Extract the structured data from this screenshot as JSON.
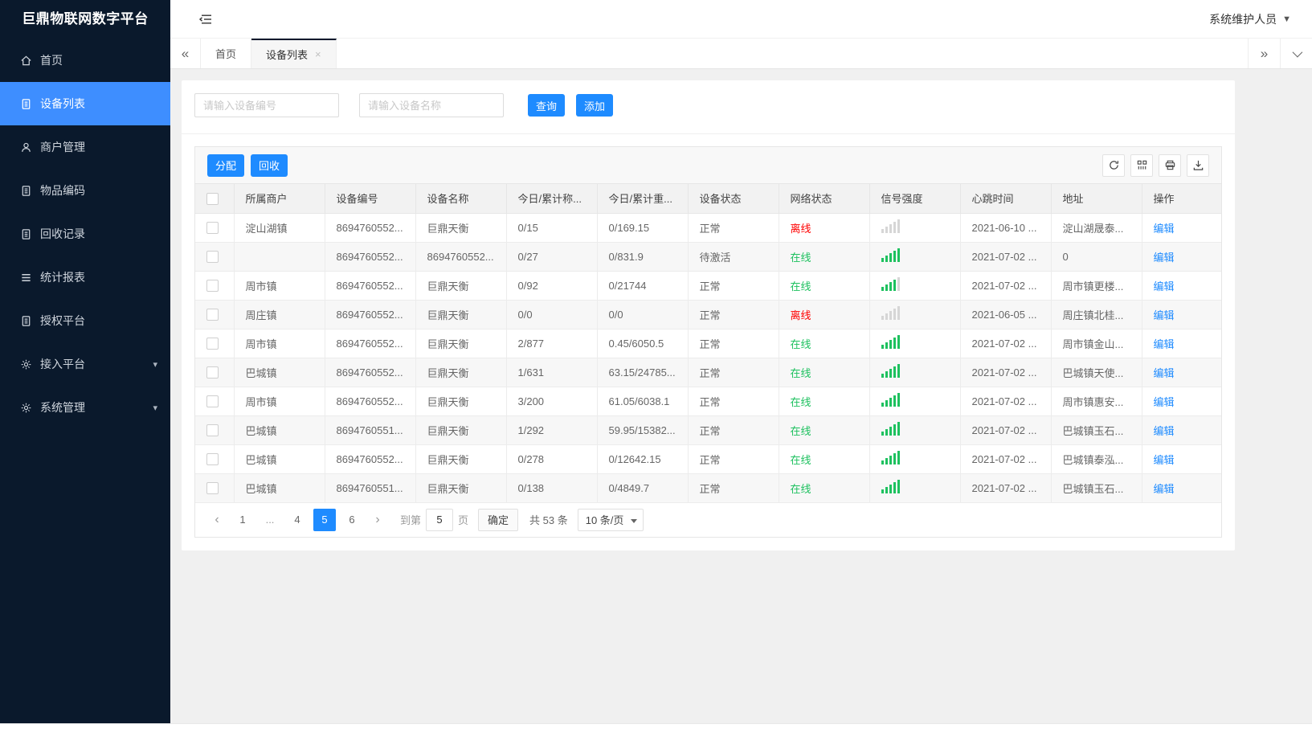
{
  "colors": {
    "accent": "#1E8BFF",
    "sidebar_bg": "#0A192C",
    "sidebar_active": "#3E8EFF",
    "online_green": "#1EC15F",
    "offline_red": "#FF0000"
  },
  "sidebar": {
    "title": "巨鼎物联网数字平台",
    "items": [
      {
        "label": "首页",
        "icon": "home-icon",
        "active": false,
        "expandable": false
      },
      {
        "label": "设备列表",
        "icon": "file-icon",
        "active": true,
        "expandable": false
      },
      {
        "label": "商户管理",
        "icon": "user-icon",
        "active": false,
        "expandable": false
      },
      {
        "label": "物品编码",
        "icon": "file-icon",
        "active": false,
        "expandable": false
      },
      {
        "label": "回收记录",
        "icon": "file-icon",
        "active": false,
        "expandable": false
      },
      {
        "label": "统计报表",
        "icon": "list-icon",
        "active": false,
        "expandable": false
      },
      {
        "label": "授权平台",
        "icon": "file-icon",
        "active": false,
        "expandable": false
      },
      {
        "label": "接入平台",
        "icon": "gear-icon",
        "active": false,
        "expandable": true
      },
      {
        "label": "系统管理",
        "icon": "gear-icon",
        "active": false,
        "expandable": true
      }
    ]
  },
  "topbar": {
    "user_label": "系统维护人员"
  },
  "tabs": [
    {
      "label": "首页",
      "active": false,
      "closable": false
    },
    {
      "label": "设备列表",
      "active": true,
      "closable": true
    }
  ],
  "search": {
    "device_no_placeholder": "请输入设备编号",
    "device_name_placeholder": "请输入设备名称",
    "query_label": "查询",
    "add_label": "添加"
  },
  "toolbar": {
    "assign_label": "分配",
    "recycle_label": "回收",
    "icons": [
      "refresh-icon",
      "columns-icon",
      "print-icon",
      "export-icon"
    ]
  },
  "table": {
    "columns": [
      "所属商户",
      "设备编号",
      "设备名称",
      "今日/累计称...",
      "今日/累计重...",
      "设备状态",
      "网络状态",
      "信号强度",
      "心跳时间",
      "地址",
      "操作"
    ],
    "edit_label": "编辑",
    "rows": [
      {
        "merchant": "淀山湖镇",
        "device_no": "8694760552...",
        "device_name": "巨鼎天衡",
        "today_count": "0/15",
        "today_weight": "0/169.15",
        "device_status": "正常",
        "network_status": "离线",
        "online": false,
        "signal": 0,
        "heartbeat": "2021-06-10 ...",
        "address": "淀山湖晟泰..."
      },
      {
        "merchant": "",
        "device_no": "8694760552...",
        "device_name": "8694760552...",
        "today_count": "0/27",
        "today_weight": "0/831.9",
        "device_status": "待激活",
        "network_status": "在线",
        "online": true,
        "signal": 5,
        "heartbeat": "2021-07-02 ...",
        "address": "0"
      },
      {
        "merchant": "周市镇",
        "device_no": "8694760552...",
        "device_name": "巨鼎天衡",
        "today_count": "0/92",
        "today_weight": "0/21744",
        "device_status": "正常",
        "network_status": "在线",
        "online": true,
        "signal": 4,
        "heartbeat": "2021-07-02 ...",
        "address": "周市镇更楼..."
      },
      {
        "merchant": "周庄镇",
        "device_no": "8694760552...",
        "device_name": "巨鼎天衡",
        "today_count": "0/0",
        "today_weight": "0/0",
        "device_status": "正常",
        "network_status": "离线",
        "online": false,
        "signal": 0,
        "heartbeat": "2021-06-05 ...",
        "address": "周庄镇北桂..."
      },
      {
        "merchant": "周市镇",
        "device_no": "8694760552...",
        "device_name": "巨鼎天衡",
        "today_count": "2/877",
        "today_weight": "0.45/6050.5",
        "device_status": "正常",
        "network_status": "在线",
        "online": true,
        "signal": 5,
        "heartbeat": "2021-07-02 ...",
        "address": "周市镇金山..."
      },
      {
        "merchant": "巴城镇",
        "device_no": "8694760552...",
        "device_name": "巨鼎天衡",
        "today_count": "1/631",
        "today_weight": "63.15/24785...",
        "device_status": "正常",
        "network_status": "在线",
        "online": true,
        "signal": 5,
        "heartbeat": "2021-07-02 ...",
        "address": "巴城镇天使..."
      },
      {
        "merchant": "周市镇",
        "device_no": "8694760552...",
        "device_name": "巨鼎天衡",
        "today_count": "3/200",
        "today_weight": "61.05/6038.1",
        "device_status": "正常",
        "network_status": "在线",
        "online": true,
        "signal": 5,
        "heartbeat": "2021-07-02 ...",
        "address": "周市镇惠安..."
      },
      {
        "merchant": "巴城镇",
        "device_no": "8694760551...",
        "device_name": "巨鼎天衡",
        "today_count": "1/292",
        "today_weight": "59.95/15382...",
        "device_status": "正常",
        "network_status": "在线",
        "online": true,
        "signal": 5,
        "heartbeat": "2021-07-02 ...",
        "address": "巴城镇玉石..."
      },
      {
        "merchant": "巴城镇",
        "device_no": "8694760552...",
        "device_name": "巨鼎天衡",
        "today_count": "0/278",
        "today_weight": "0/12642.15",
        "device_status": "正常",
        "network_status": "在线",
        "online": true,
        "signal": 5,
        "heartbeat": "2021-07-02 ...",
        "address": "巴城镇泰泓..."
      },
      {
        "merchant": "巴城镇",
        "device_no": "8694760551...",
        "device_name": "巨鼎天衡",
        "today_count": "0/138",
        "today_weight": "0/4849.7",
        "device_status": "正常",
        "network_status": "在线",
        "online": true,
        "signal": 5,
        "heartbeat": "2021-07-02 ...",
        "address": "巴城镇玉石..."
      }
    ]
  },
  "pagination": {
    "pages": [
      {
        "label": "1",
        "active": false,
        "ellipsis": false
      },
      {
        "label": "...",
        "active": false,
        "ellipsis": true
      },
      {
        "label": "4",
        "active": false,
        "ellipsis": false
      },
      {
        "label": "5",
        "active": true,
        "ellipsis": false
      },
      {
        "label": "6",
        "active": false,
        "ellipsis": false
      }
    ],
    "goto_label": "到第",
    "goto_value": "5",
    "page_unit": "页",
    "confirm_label": "确定",
    "total_label": "共 53 条",
    "page_size_label": "10 条/页"
  }
}
